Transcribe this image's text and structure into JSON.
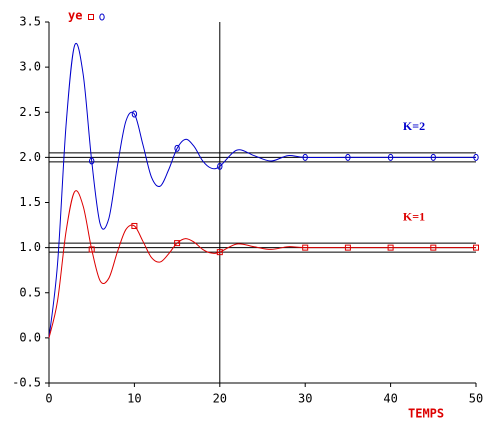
{
  "chart_data": {
    "type": "line",
    "y_label": "ye",
    "x_label": "TEMPS",
    "x": [
      0,
      1,
      2,
      3,
      4,
      5,
      6,
      7,
      8,
      9,
      10,
      11,
      12,
      13,
      14,
      15,
      16,
      17,
      18,
      19,
      20,
      22,
      24,
      26,
      28,
      30,
      35,
      40,
      45,
      50
    ],
    "series": [
      {
        "name": "K=2",
        "color": "#0000cc",
        "marker": "circle",
        "values": [
          0,
          0.82,
          2.36,
          3.24,
          2.92,
          1.96,
          1.26,
          1.32,
          1.9,
          2.4,
          2.48,
          2.14,
          1.78,
          1.68,
          1.86,
          2.1,
          2.2,
          2.12,
          1.96,
          1.88,
          1.9,
          2.08,
          2.02,
          1.96,
          2.02,
          2.0,
          2.0,
          2.0,
          2.0,
          2.0
        ]
      },
      {
        "name": "K=1",
        "color": "#dd0000",
        "marker": "square",
        "values": [
          0,
          0.41,
          1.18,
          1.62,
          1.46,
          0.98,
          0.63,
          0.66,
          0.95,
          1.2,
          1.24,
          1.07,
          0.89,
          0.84,
          0.93,
          1.05,
          1.1,
          1.06,
          0.98,
          0.94,
          0.95,
          1.04,
          1.01,
          0.98,
          1.01,
          1.0,
          1.0,
          1.0,
          1.0,
          1.0
        ]
      }
    ],
    "xlim": [
      0,
      50
    ],
    "xticks": [
      0,
      10,
      20,
      30,
      40,
      50
    ],
    "ylim": [
      -0.5,
      3.5
    ],
    "yticks": [
      -0.5,
      {
        "value": 0,
        "label": "0.0"
      },
      0.5,
      {
        "value": 1,
        "label": "1.0"
      },
      1.5,
      {
        "value": 2,
        "label": "2.0"
      },
      2.5,
      {
        "value": 3,
        "label": "3.0"
      },
      3.5
    ],
    "hlines": [
      2.05,
      2.0,
      1.95,
      1.05,
      1.0,
      0.95
    ],
    "vlines": [
      20
    ]
  }
}
